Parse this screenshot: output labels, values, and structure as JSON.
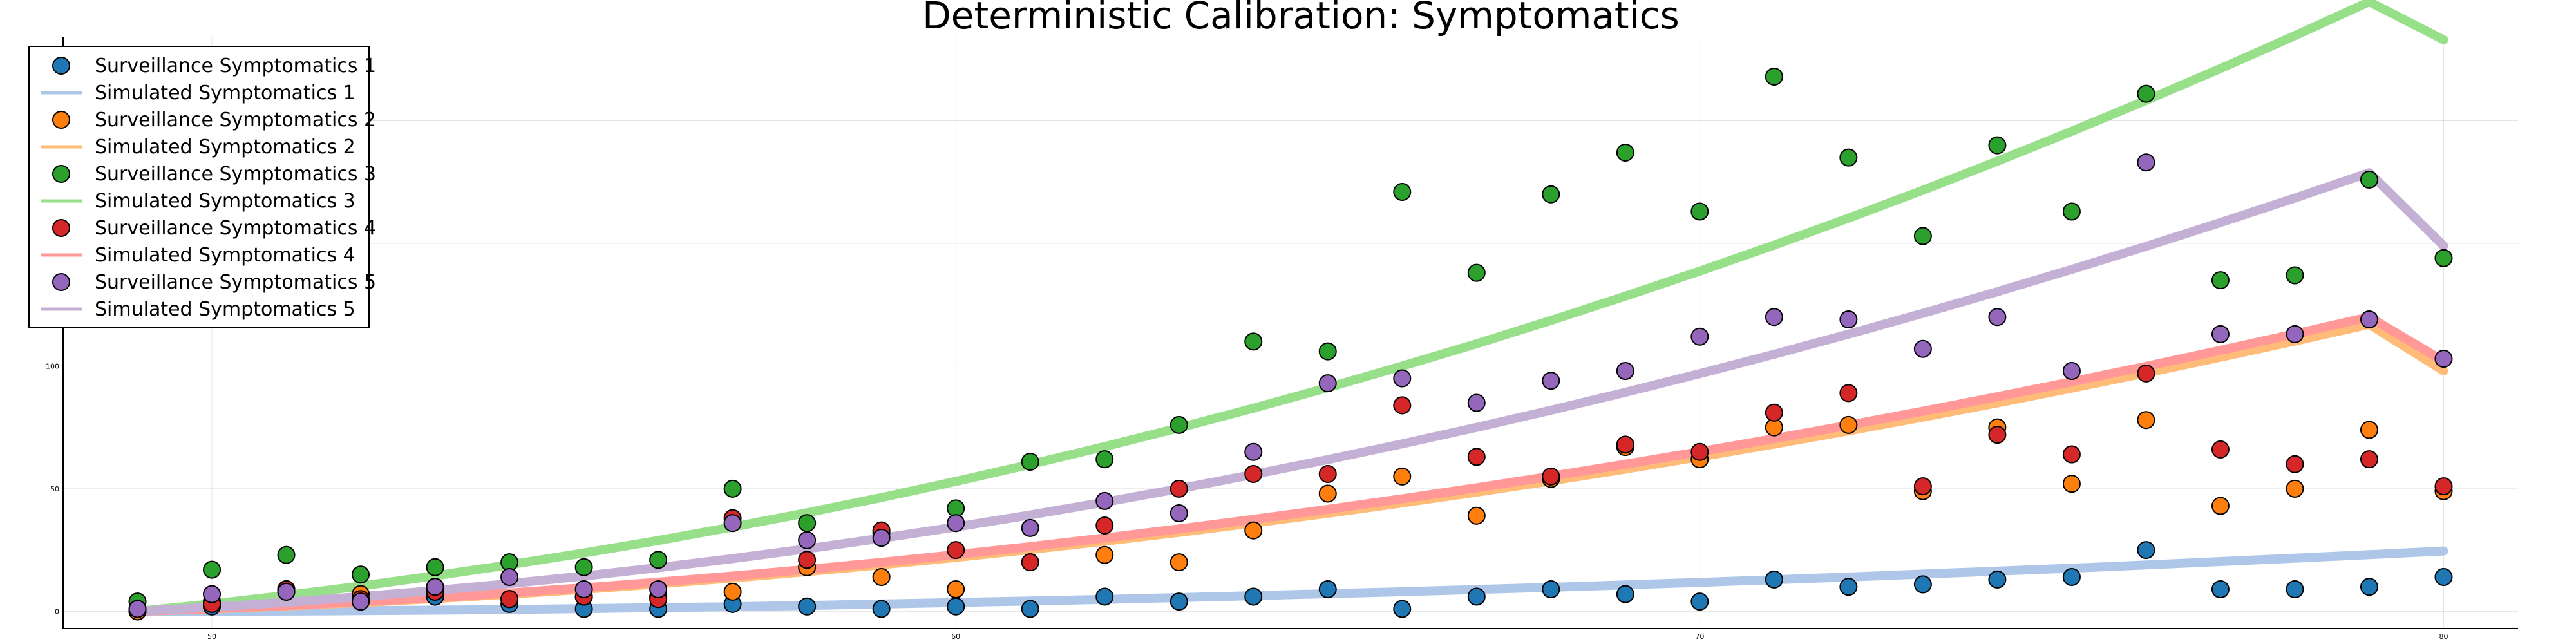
{
  "chart_data": {
    "type": "scatter",
    "title": "Deterministic Calibration: Symptomatics",
    "xlabel": "",
    "ylabel": "",
    "xlim": [
      48,
      81
    ],
    "ylim": [
      -7,
      234
    ],
    "x_ticks": [
      50,
      60,
      70,
      80
    ],
    "y_ticks": [
      0,
      50,
      100,
      150,
      200
    ],
    "grid": true,
    "legend_position": "top-left",
    "x": [
      49,
      50,
      51,
      52,
      53,
      54,
      55,
      56,
      57,
      58,
      59,
      60,
      61,
      62,
      63,
      64,
      65,
      66,
      67,
      68,
      69,
      70,
      71,
      72,
      73,
      74,
      75,
      76,
      77,
      78,
      79,
      80
    ],
    "series": [
      {
        "name": "Surveillance Symptomatics 1",
        "kind": "scatter",
        "color": "#1f77b4",
        "values": [
          0,
          2,
          8,
          4,
          6,
          3,
          1,
          1,
          3,
          2,
          1,
          2,
          1,
          6,
          4,
          6,
          9,
          1,
          6,
          9,
          7,
          4,
          13,
          10,
          11,
          13,
          14,
          25,
          9,
          9,
          10,
          14
        ]
      },
      {
        "name": "Simulated Symptomatics 1",
        "kind": "line",
        "color": "#aec7e8",
        "values": [
          0,
          0.03,
          0.12,
          0.27,
          0.48,
          0.75,
          1.1,
          1.5,
          1.9,
          2.4,
          3.0,
          3.6,
          4.2,
          4.9,
          5.6,
          6.4,
          7.2,
          8.0,
          8.9,
          9.8,
          10.8,
          11.8,
          12.9,
          14.0,
          15.2,
          16.4,
          17.6,
          18.9,
          20.3,
          21.7,
          23.1,
          24.6
        ]
      },
      {
        "name": "Surveillance Symptomatics 2",
        "kind": "scatter",
        "color": "#ff7f0e",
        "values": [
          0,
          4,
          9,
          7,
          8,
          5,
          6,
          6,
          8,
          18,
          14,
          9,
          20,
          23,
          20,
          33,
          48,
          55,
          39,
          54,
          67,
          62,
          75,
          76,
          49,
          75,
          52,
          78,
          43,
          50,
          74,
          49
        ]
      },
      {
        "name": "Simulated Symptomatics 2",
        "kind": "line",
        "color": "#ffbb78",
        "values": [
          0,
          1.0,
          2.2,
          3.6,
          5.2,
          7.0,
          9.0,
          11.2,
          13.6,
          16.2,
          19.0,
          22.0,
          25.2,
          28.6,
          32.2,
          36.0,
          40.0,
          44.2,
          48.6,
          53.2,
          58.0,
          63.0,
          68.2,
          73.6,
          79.2,
          85.0,
          91.0,
          97.2,
          103.6,
          110.2,
          117.0,
          98
        ]
      },
      {
        "name": "Surveillance Symptomatics 3",
        "kind": "scatter",
        "color": "#2ca02c",
        "values": [
          4,
          17,
          23,
          15,
          18,
          20,
          18,
          21,
          50,
          36,
          32,
          42,
          61,
          62,
          76,
          110,
          106,
          171,
          138,
          170,
          187,
          163,
          218,
          185,
          153,
          190,
          163,
          211,
          135,
          137,
          176,
          144
        ]
      },
      {
        "name": "Simulated Symptomatics 3",
        "kind": "line",
        "color": "#98df8a",
        "values": [
          0,
          3.0,
          6.5,
          10.3,
          14.5,
          19.0,
          23.8,
          28.9,
          34.4,
          40.2,
          46.4,
          53.0,
          59.9,
          67.2,
          74.8,
          82.8,
          91.2,
          100.0,
          109.1,
          118.6,
          128.5,
          138.7,
          149.3,
          160.3,
          171.7,
          183.5,
          195.7,
          208.3,
          221.3,
          234.7,
          248.5,
          233
        ]
      },
      {
        "name": "Surveillance Symptomatics 4",
        "kind": "scatter",
        "color": "#d62728",
        "values": [
          1,
          3,
          9,
          5,
          8,
          5,
          6,
          5,
          38,
          21,
          33,
          25,
          20,
          35,
          50,
          56,
          56,
          84,
          63,
          55,
          68,
          65,
          81,
          89,
          51,
          72,
          64,
          97,
          66,
          60,
          62,
          51
        ]
      },
      {
        "name": "Simulated Symptomatics 4",
        "kind": "line",
        "color": "#ff9896",
        "values": [
          0,
          1.1,
          2.4,
          3.9,
          5.6,
          7.5,
          9.6,
          11.9,
          14.4,
          17.1,
          20.0,
          23.1,
          26.4,
          29.9,
          33.6,
          37.5,
          41.6,
          45.9,
          50.4,
          55.1,
          60.0,
          65.1,
          70.4,
          75.9,
          81.6,
          87.5,
          93.6,
          99.9,
          106.4,
          113.1,
          120.0,
          102
        ]
      },
      {
        "name": "Surveillance Symptomatics 5",
        "kind": "scatter",
        "color": "#9467bd",
        "values": [
          1,
          7,
          8,
          4,
          10,
          14,
          9,
          9,
          36,
          29,
          30,
          36,
          34,
          45,
          40,
          65,
          93,
          95,
          85,
          94,
          98,
          112,
          120,
          119,
          107,
          120,
          98,
          183,
          113,
          113,
          119,
          103
        ]
      },
      {
        "name": "Simulated Symptomatics 5",
        "kind": "line",
        "color": "#c5b0d5",
        "values": [
          0,
          1.7,
          3.7,
          6.0,
          8.5,
          11.3,
          14.4,
          17.8,
          21.5,
          25.5,
          29.8,
          34.4,
          39.3,
          44.5,
          50.0,
          55.8,
          61.9,
          68.3,
          75.0,
          82.0,
          89.3,
          96.9,
          104.8,
          113.0,
          121.5,
          130.3,
          139.4,
          148.8,
          158.5,
          168.5,
          178.8,
          149
        ]
      }
    ]
  }
}
